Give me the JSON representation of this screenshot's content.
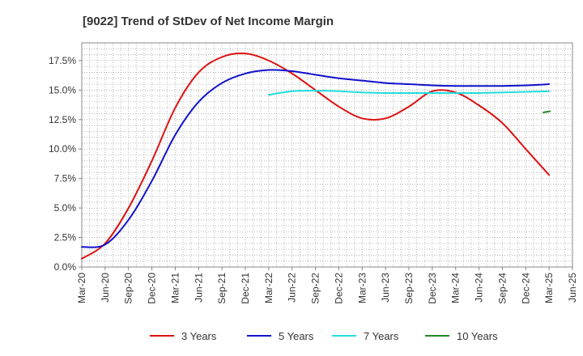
{
  "chart_data": {
    "type": "line",
    "title": "[9022]  Trend of StDev of Net Income Margin",
    "xlabel": "",
    "ylabel": "",
    "x_ticks": [
      "Mar-20",
      "Jun-20",
      "Sep-20",
      "Dec-20",
      "Mar-21",
      "Jun-21",
      "Sep-21",
      "Dec-21",
      "Mar-22",
      "Jun-22",
      "Sep-22",
      "Dec-22",
      "Mar-23",
      "Jun-23",
      "Sep-23",
      "Dec-23",
      "Mar-24",
      "Jun-24",
      "Sep-24",
      "Dec-24",
      "Mar-25",
      "Jun-25"
    ],
    "y_ticks": [
      "0.0%",
      "2.5%",
      "5.0%",
      "7.5%",
      "10.0%",
      "12.5%",
      "15.0%",
      "17.5%"
    ],
    "ylim": [
      0,
      19
    ],
    "grid": true,
    "legend_position": "bottom",
    "series": [
      {
        "name": "3 Years",
        "color": "#dd1111",
        "points": [
          [
            "Mar-20",
            0.7
          ],
          [
            "Jun-20",
            2.0
          ],
          [
            "Sep-20",
            5.0
          ],
          [
            "Dec-20",
            9.0
          ],
          [
            "Mar-21",
            13.5
          ],
          [
            "Jun-21",
            16.5
          ],
          [
            "Sep-21",
            17.8
          ],
          [
            "Dec-21",
            18.1
          ],
          [
            "Mar-22",
            17.5
          ],
          [
            "Jun-22",
            16.4
          ],
          [
            "Sep-22",
            15.0
          ],
          [
            "Dec-22",
            13.6
          ],
          [
            "Mar-23",
            12.6
          ],
          [
            "Jun-23",
            12.6
          ],
          [
            "Sep-23",
            13.6
          ],
          [
            "Dec-23",
            14.9
          ],
          [
            "Mar-24",
            14.8
          ],
          [
            "Jun-24",
            13.7
          ],
          [
            "Sep-24",
            12.2
          ],
          [
            "Dec-24",
            10.0
          ],
          [
            "Mar-25",
            7.8
          ]
        ]
      },
      {
        "name": "5 Years",
        "color": "#1111cc",
        "points": [
          [
            "Mar-20",
            1.7
          ],
          [
            "Jun-20",
            1.9
          ],
          [
            "Sep-20",
            4.0
          ],
          [
            "Dec-20",
            7.3
          ],
          [
            "Mar-21",
            11.2
          ],
          [
            "Jun-21",
            14.0
          ],
          [
            "Sep-21",
            15.6
          ],
          [
            "Dec-21",
            16.4
          ],
          [
            "Mar-22",
            16.7
          ],
          [
            "Jun-22",
            16.6
          ],
          [
            "Sep-22",
            16.3
          ],
          [
            "Dec-22",
            16.0
          ],
          [
            "Mar-23",
            15.8
          ],
          [
            "Jun-23",
            15.6
          ],
          [
            "Sep-23",
            15.5
          ],
          [
            "Dec-23",
            15.4
          ],
          [
            "Mar-24",
            15.35
          ],
          [
            "Jun-24",
            15.35
          ],
          [
            "Sep-24",
            15.35
          ],
          [
            "Dec-24",
            15.4
          ],
          [
            "Mar-25",
            15.5
          ]
        ]
      },
      {
        "name": "7 Years",
        "color": "#22dddd",
        "points": [
          [
            "Mar-22",
            14.6
          ],
          [
            "Jun-22",
            14.9
          ],
          [
            "Sep-22",
            14.95
          ],
          [
            "Dec-22",
            14.9
          ],
          [
            "Mar-23",
            14.8
          ],
          [
            "Jun-23",
            14.75
          ],
          [
            "Sep-23",
            14.75
          ],
          [
            "Dec-23",
            14.75
          ],
          [
            "Mar-24",
            14.75
          ],
          [
            "Jun-24",
            14.75
          ],
          [
            "Sep-24",
            14.8
          ],
          [
            "Dec-24",
            14.85
          ],
          [
            "Mar-25",
            14.9
          ]
        ]
      },
      {
        "name": "10 Years",
        "color": "#228822",
        "points": [
          [
            "Mar-25",
            13.1
          ],
          [
            "Mar-25",
            13.2
          ]
        ]
      }
    ]
  }
}
